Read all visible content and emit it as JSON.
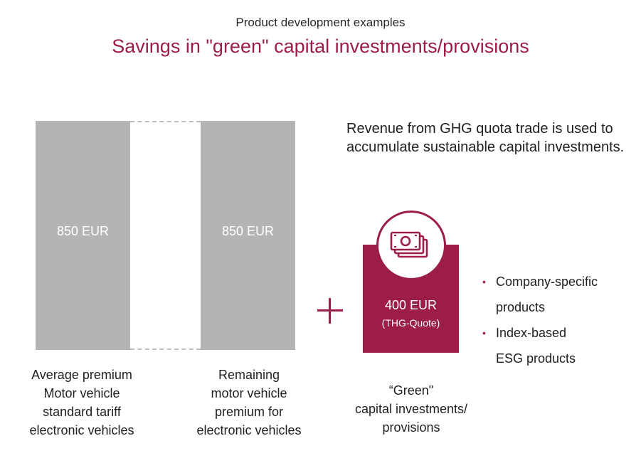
{
  "header": {
    "subtitle": "Product development examples",
    "title": "Savings in \"green\" capital investments/provisions"
  },
  "bars": {
    "left_value": "850 EUR",
    "right_value": "850 EUR"
  },
  "captions": {
    "left": [
      "Average premium",
      "Motor vehicle",
      "standard tariff",
      "electronic vehicles"
    ],
    "right": [
      "Remaining",
      "motor vehicle",
      "premium for",
      "electronic vehicles"
    ],
    "green": [
      "“Green\"",
      "capital investments/",
      "provisions"
    ]
  },
  "revenue_text": "Revenue from GHG quota trade is used to accumulate sustainable capital investments.",
  "green_box": {
    "value": "400 EUR",
    "sub": "(THG-Quote)",
    "icon": "money-icon"
  },
  "bullets": [
    [
      "Company-specific",
      "products"
    ],
    [
      "Index-based",
      "ESG products"
    ]
  ],
  "colors": {
    "accent": "#9b1d48",
    "bar_gray": "#b4b4b4"
  },
  "chart_data": {
    "type": "bar",
    "categories": [
      "Average premium Motor vehicle standard tariff electronic vehicles",
      "Remaining motor vehicle premium for electronic vehicles",
      "“Green\" capital investments/ provisions"
    ],
    "values": [
      850,
      850,
      400
    ],
    "value_labels": [
      "850 EUR",
      "850 EUR",
      "400 EUR"
    ],
    "title": "Savings in \"green\" capital investments/provisions",
    "subtitle": "Product development examples",
    "unit": "EUR",
    "xlabel": "",
    "ylabel": "",
    "grid": false
  }
}
